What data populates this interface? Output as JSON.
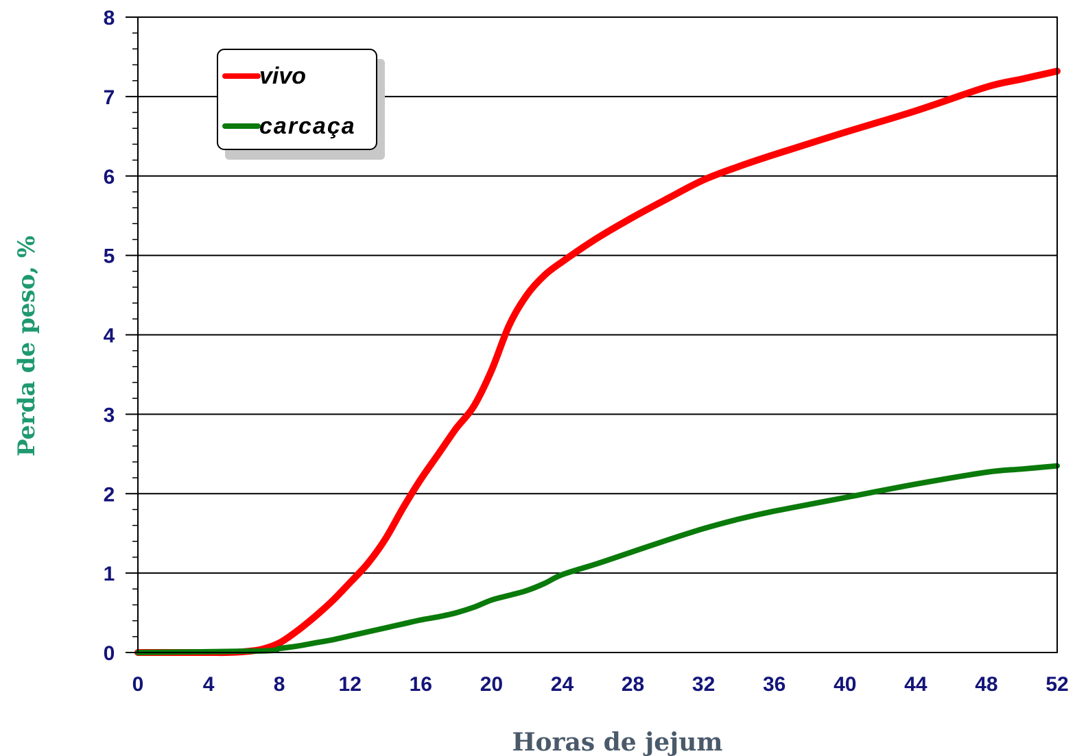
{
  "chart_data": {
    "type": "line",
    "title": "",
    "xlabel": "Horas de jejum",
    "ylabel": "Perda de peso, %",
    "xlim": [
      0,
      52
    ],
    "ylim": [
      0,
      8
    ],
    "x_ticks": [
      0,
      4,
      8,
      12,
      16,
      20,
      24,
      28,
      32,
      36,
      40,
      44,
      48,
      52
    ],
    "y_ticks": [
      0,
      1,
      2,
      3,
      4,
      5,
      6,
      7,
      8
    ],
    "grid": "horizontal",
    "legend_position": "top-left",
    "colors": {
      "xlabel": "#4a5a6a",
      "ylabel": "#1e9970",
      "ticks": "#14147a"
    },
    "series": [
      {
        "name": "vivo",
        "color": "#ff0000",
        "x": [
          0,
          2,
          4,
          5,
          6,
          7,
          8,
          9,
          10,
          11,
          12,
          13,
          14,
          15,
          16,
          17,
          18,
          19,
          20,
          21,
          22,
          23,
          24,
          26,
          28,
          30,
          32,
          34,
          36,
          40,
          44,
          48,
          50,
          52
        ],
        "y": [
          0,
          0,
          0,
          0,
          0.01,
          0.04,
          0.12,
          0.27,
          0.45,
          0.65,
          0.88,
          1.12,
          1.43,
          1.82,
          2.18,
          2.5,
          2.82,
          3.1,
          3.55,
          4.12,
          4.5,
          4.75,
          4.92,
          5.22,
          5.48,
          5.72,
          5.95,
          6.12,
          6.27,
          6.55,
          6.82,
          7.12,
          7.22,
          7.32
        ]
      },
      {
        "name": "carcaça",
        "color": "#0a7a0a",
        "x": [
          0,
          7,
          8,
          9,
          10,
          11,
          12,
          13,
          14,
          15,
          16,
          17,
          18,
          19,
          20,
          21,
          22,
          23,
          24,
          26,
          28,
          30,
          32,
          34,
          36,
          40,
          44,
          48,
          50,
          52
        ],
        "y": [
          0,
          0.02,
          0.05,
          0.08,
          0.12,
          0.16,
          0.21,
          0.26,
          0.31,
          0.36,
          0.41,
          0.45,
          0.5,
          0.57,
          0.66,
          0.72,
          0.78,
          0.87,
          0.98,
          1.12,
          1.27,
          1.42,
          1.56,
          1.68,
          1.78,
          1.95,
          2.12,
          2.27,
          2.31,
          2.35
        ]
      }
    ]
  }
}
